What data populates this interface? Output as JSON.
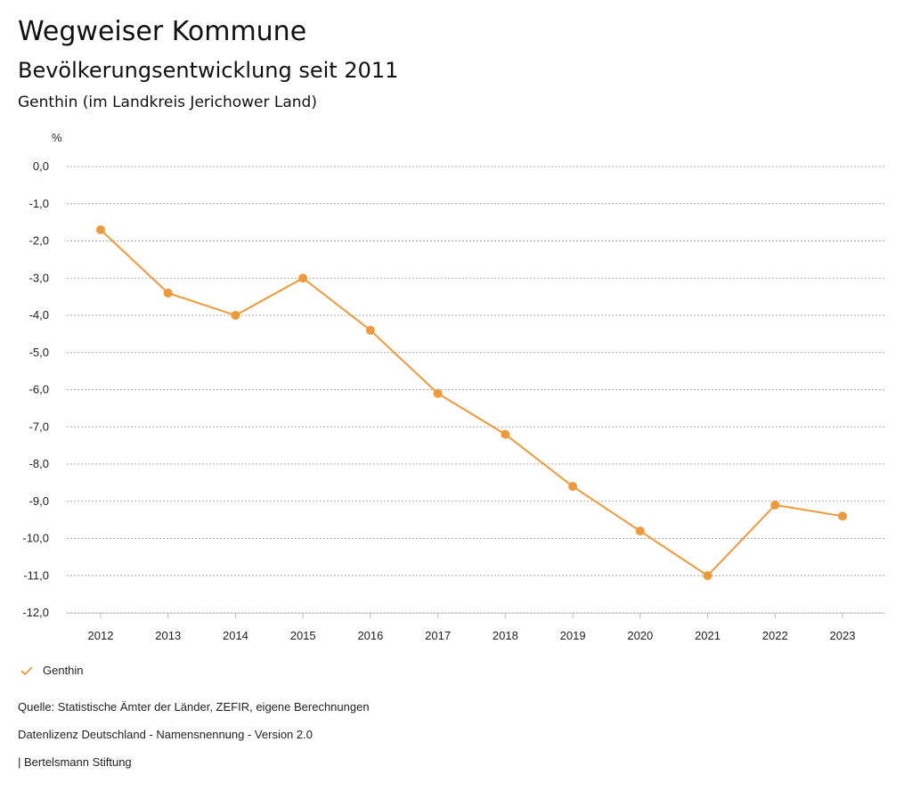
{
  "header": {
    "title": "Wegweiser Kommune",
    "subtitle": "Bevölkerungsentwicklung seit 2011",
    "region": "Genthin (im Landkreis Jerichower Land)"
  },
  "chart_data": {
    "type": "line",
    "title": "Bevölkerungsentwicklung seit 2011",
    "ylabel": "%",
    "xlabel": "",
    "ylim": [
      -12,
      0
    ],
    "yticks": [
      "0,0",
      "-1,0",
      "-2,0",
      "-3,0",
      "-4,0",
      "-5,0",
      "-6,0",
      "-7,0",
      "-8,0",
      "-9,0",
      "-10,0",
      "-11,0",
      "-12,0"
    ],
    "grid": true,
    "categories": [
      "2012",
      "2013",
      "2014",
      "2015",
      "2016",
      "2017",
      "2018",
      "2019",
      "2020",
      "2021",
      "2022",
      "2023"
    ],
    "series": [
      {
        "name": "Genthin",
        "color": "#f0993a",
        "values": [
          -1.7,
          -3.4,
          -4.0,
          -3.0,
          -4.4,
          -6.1,
          -7.2,
          -8.6,
          -9.8,
          -11.0,
          -9.1,
          -9.4
        ]
      }
    ],
    "legend_position": "bottom-left"
  },
  "footer": {
    "source": "Quelle: Statistische Ämter der Länder, ZEFIR, eigene Berechnungen",
    "license": "Datenlizenz Deutschland - Namensnennung - Version 2.0",
    "credit": "| Bertelsmann Stiftung"
  }
}
